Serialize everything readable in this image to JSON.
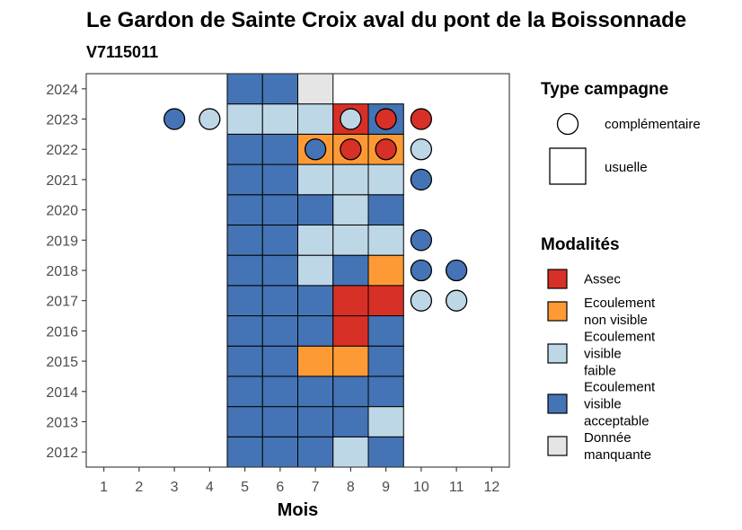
{
  "chart_data": {
    "type": "heatmap",
    "title": "Le Gardon de Sainte Croix aval du pont de la Boissonnade",
    "subtitle": "V7115011",
    "xlabel": "Mois",
    "ylabel": "",
    "x_ticks": [
      "1",
      "2",
      "3",
      "4",
      "5",
      "6",
      "7",
      "8",
      "9",
      "10",
      "11",
      "12"
    ],
    "y_ticks": [
      "2012",
      "2013",
      "2014",
      "2015",
      "2016",
      "2017",
      "2018",
      "2019",
      "2020",
      "2021",
      "2022",
      "2023",
      "2024"
    ],
    "xlim": [
      0.5,
      12.5
    ],
    "ylim": [
      2011.5,
      2024.5
    ],
    "grid": false,
    "legend_campagne": {
      "title": "Type campagne",
      "items": [
        {
          "key": "complementaire",
          "label": "complémentaire",
          "shape": "circle"
        },
        {
          "key": "usuelle",
          "label": "usuelle",
          "shape": "square"
        }
      ]
    },
    "legend_modalites": {
      "title": "Modalités",
      "items": [
        {
          "key": "assec",
          "lines": [
            "Assec"
          ],
          "color": "#d73027"
        },
        {
          "key": "nonvisible",
          "lines": [
            "Ecoulement",
            "non visible"
          ],
          "color": "#fd9a35"
        },
        {
          "key": "faible",
          "lines": [
            "Ecoulement",
            "visible",
            "faible"
          ],
          "color": "#bdd7e7"
        },
        {
          "key": "acceptable",
          "lines": [
            "Ecoulement",
            "visible",
            "acceptable"
          ],
          "color": "#4474b5"
        },
        {
          "key": "manquante",
          "lines": [
            "Donnée",
            "manquante"
          ],
          "color": "#e5e5e5"
        }
      ]
    },
    "usuelle": [
      {
        "year": 2012,
        "values": {
          "5": "acceptable",
          "6": "acceptable",
          "7": "acceptable",
          "8": "faible",
          "9": "acceptable"
        }
      },
      {
        "year": 2013,
        "values": {
          "5": "acceptable",
          "6": "acceptable",
          "7": "acceptable",
          "8": "acceptable",
          "9": "faible"
        }
      },
      {
        "year": 2014,
        "values": {
          "5": "acceptable",
          "6": "acceptable",
          "7": "acceptable",
          "8": "acceptable",
          "9": "acceptable"
        }
      },
      {
        "year": 2015,
        "values": {
          "5": "acceptable",
          "6": "acceptable",
          "7": "nonvisible",
          "8": "nonvisible",
          "9": "acceptable"
        }
      },
      {
        "year": 2016,
        "values": {
          "5": "acceptable",
          "6": "acceptable",
          "7": "acceptable",
          "8": "assec",
          "9": "acceptable"
        }
      },
      {
        "year": 2017,
        "values": {
          "5": "acceptable",
          "6": "acceptable",
          "7": "acceptable",
          "8": "assec",
          "9": "assec"
        }
      },
      {
        "year": 2018,
        "values": {
          "5": "acceptable",
          "6": "acceptable",
          "7": "faible",
          "8": "acceptable",
          "9": "nonvisible"
        }
      },
      {
        "year": 2019,
        "values": {
          "5": "acceptable",
          "6": "acceptable",
          "7": "faible",
          "8": "faible",
          "9": "faible"
        }
      },
      {
        "year": 2020,
        "values": {
          "5": "acceptable",
          "6": "acceptable",
          "7": "acceptable",
          "8": "faible",
          "9": "acceptable"
        }
      },
      {
        "year": 2021,
        "values": {
          "5": "acceptable",
          "6": "acceptable",
          "7": "faible",
          "8": "faible",
          "9": "faible"
        }
      },
      {
        "year": 2022,
        "values": {
          "5": "acceptable",
          "6": "acceptable",
          "7": "nonvisible",
          "8": "nonvisible",
          "9": "nonvisible"
        }
      },
      {
        "year": 2023,
        "values": {
          "5": "faible",
          "6": "faible",
          "7": "faible",
          "8": "assec",
          "9": "acceptable"
        }
      },
      {
        "year": 2024,
        "values": {
          "5": "acceptable",
          "6": "acceptable",
          "7": "manquante"
        }
      }
    ],
    "complementaire": [
      {
        "year": 2017,
        "month": 10,
        "value": "faible"
      },
      {
        "year": 2017,
        "month": 11,
        "value": "faible"
      },
      {
        "year": 2018,
        "month": 10,
        "value": "acceptable"
      },
      {
        "year": 2018,
        "month": 11,
        "value": "acceptable"
      },
      {
        "year": 2019,
        "month": 10,
        "value": "acceptable"
      },
      {
        "year": 2021,
        "month": 10,
        "value": "acceptable"
      },
      {
        "year": 2022,
        "month": 7,
        "value": "acceptable"
      },
      {
        "year": 2022,
        "month": 8,
        "value": "assec"
      },
      {
        "year": 2022,
        "month": 9,
        "value": "assec"
      },
      {
        "year": 2022,
        "month": 10,
        "value": "faible"
      },
      {
        "year": 2023,
        "month": 3,
        "value": "acceptable"
      },
      {
        "year": 2023,
        "month": 4,
        "value": "faible"
      },
      {
        "year": 2023,
        "month": 8,
        "value": "faible"
      },
      {
        "year": 2023,
        "month": 9,
        "value": "assec"
      },
      {
        "year": 2023,
        "month": 10,
        "value": "assec"
      }
    ]
  }
}
